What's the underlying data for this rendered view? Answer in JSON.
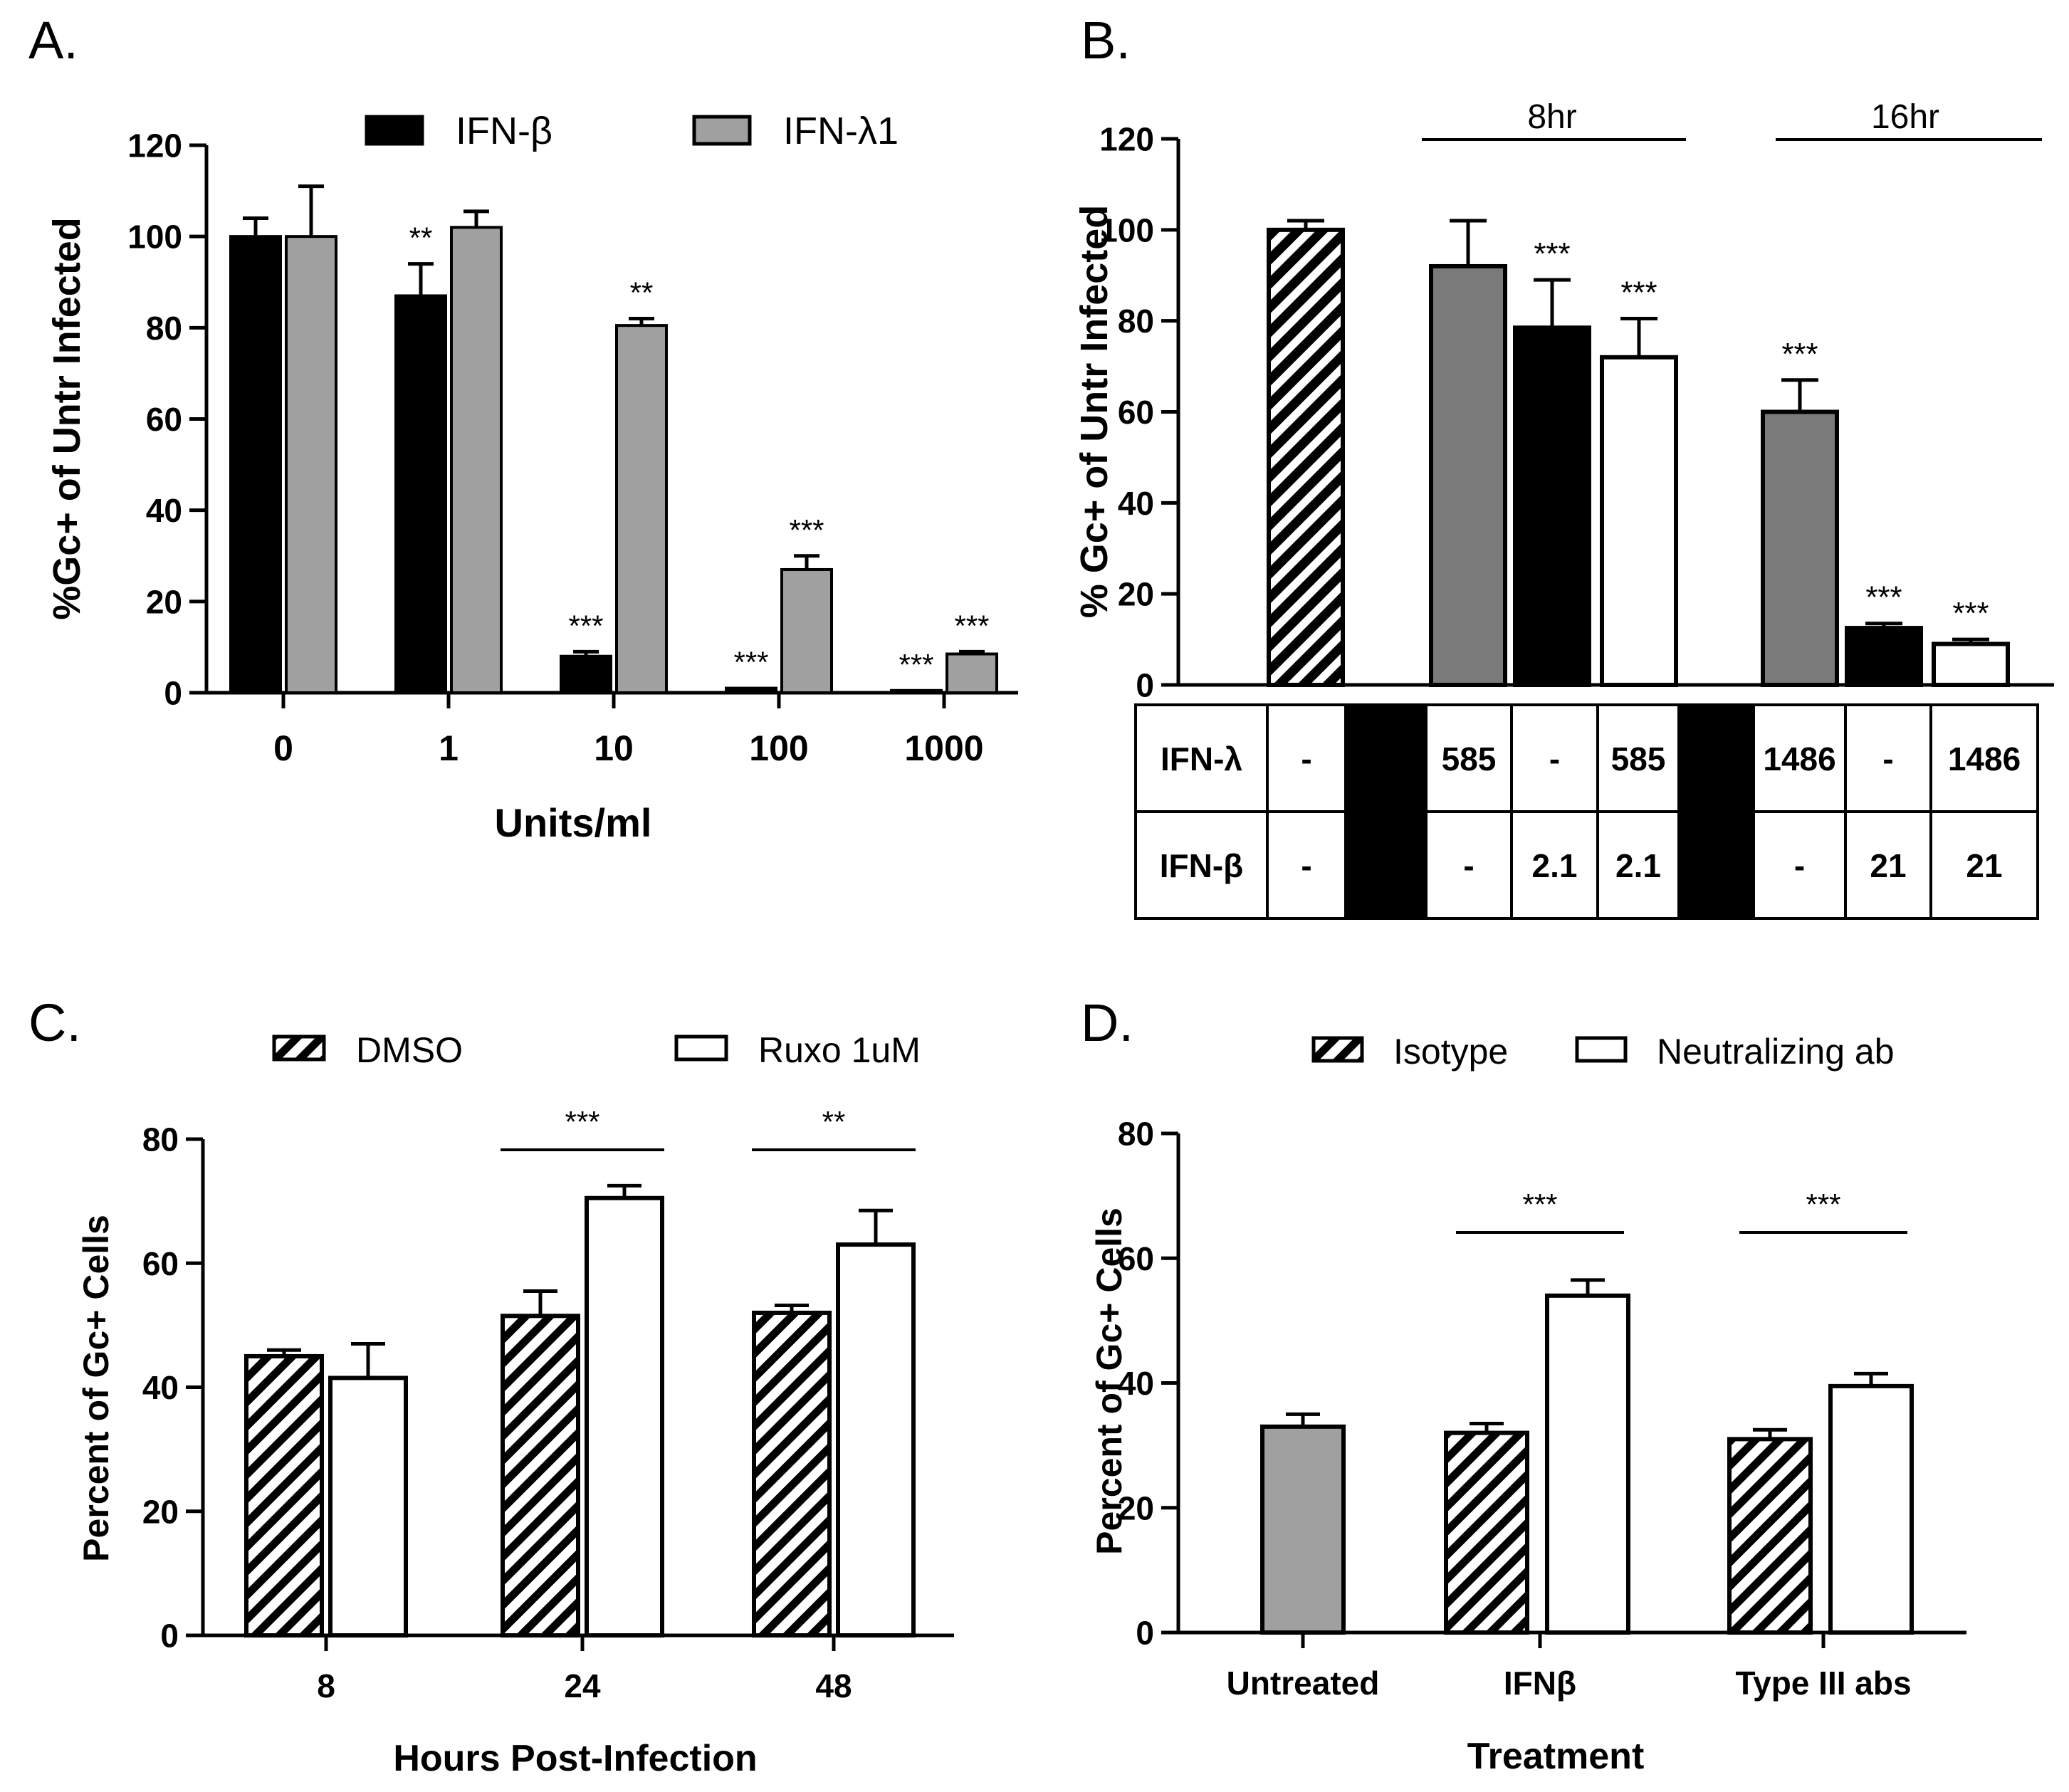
{
  "panels": {
    "A": {
      "letter": "A."
    },
    "B": {
      "letter": "B."
    },
    "C": {
      "letter": "C."
    },
    "D": {
      "letter": "D."
    }
  },
  "chart_data": [
    {
      "id": "A",
      "type": "bar",
      "ylabel": "%Gc+ of Untr Infected",
      "xlabel": "Units/ml",
      "ylim": [
        0,
        120
      ],
      "yticks": [
        0,
        20,
        40,
        60,
        80,
        100,
        120
      ],
      "categories": [
        "0",
        "1",
        "10",
        "100",
        "1000"
      ],
      "legend_position": "top",
      "series": [
        {
          "name": "IFN-β",
          "color": "#000000",
          "pattern": "solid",
          "values": [
            100,
            87,
            8,
            1,
            0.5
          ],
          "errors": [
            4,
            7,
            1,
            0,
            0
          ],
          "sig": [
            "",
            "**",
            "***",
            "***",
            "***"
          ]
        },
        {
          "name": "IFN-λ1",
          "color": "#a0a0a0",
          "pattern": "solid",
          "values": [
            100,
            102,
            80.5,
            27,
            8.5
          ],
          "errors": [
            11,
            3.5,
            1.5,
            3,
            0.5
          ],
          "sig": [
            "",
            "",
            "**",
            "***",
            "***"
          ]
        }
      ]
    },
    {
      "id": "B",
      "type": "bar",
      "ylabel": "% Gc+ of Untr Infected",
      "ylim": [
        0,
        120
      ],
      "yticks": [
        0,
        20,
        40,
        60,
        80,
        100,
        120
      ],
      "group_labels": [
        "8hr",
        "16hr"
      ],
      "bars": [
        {
          "value": 100,
          "error": 2,
          "fill": "hatch",
          "sig": ""
        },
        {
          "value": 92,
          "error": 10,
          "fill": "#7a7a7a",
          "sig": ""
        },
        {
          "value": 78.5,
          "error": 10.5,
          "fill": "#000000",
          "sig": "***"
        },
        {
          "value": 72,
          "error": 8.5,
          "fill": "#ffffff",
          "sig": "***"
        },
        {
          "value": 60,
          "error": 7,
          "fill": "#7a7a7a",
          "sig": "***"
        },
        {
          "value": 12.5,
          "error": 1,
          "fill": "#000000",
          "sig": "***"
        },
        {
          "value": 9,
          "error": 1,
          "fill": "#ffffff",
          "sig": "***"
        }
      ],
      "table": {
        "rows": [
          {
            "label": "IFN-λ",
            "cells": [
              "-",
              "",
              "585",
              "-",
              "585",
              "",
              "1486",
              "-",
              "1486"
            ]
          },
          {
            "label": "IFN-β",
            "cells": [
              "-",
              "",
              "-",
              "2.1",
              "2.1",
              "",
              "-",
              "21",
              "21"
            ]
          }
        ]
      }
    },
    {
      "id": "C",
      "type": "bar",
      "ylabel": "Percent of Gc+ Cells",
      "xlabel": "Hours Post-Infection",
      "ylim": [
        0,
        80
      ],
      "yticks": [
        0,
        20,
        40,
        60,
        80
      ],
      "categories": [
        "8",
        "24",
        "48"
      ],
      "legend_position": "top",
      "series": [
        {
          "name": "DMSO",
          "pattern": "hatch",
          "values": [
            45,
            51.5,
            52
          ],
          "errors": [
            1,
            4,
            1.2
          ]
        },
        {
          "name": "Ruxo 1uM",
          "pattern": "white",
          "values": [
            41.5,
            70.5,
            63
          ],
          "errors": [
            5.5,
            2,
            5.5
          ]
        }
      ],
      "sig_bars": [
        {
          "category": "24",
          "label": "***"
        },
        {
          "category": "48",
          "label": "**"
        }
      ]
    },
    {
      "id": "D",
      "type": "bar",
      "ylabel": "Percent of Gc+ Cells",
      "xlabel": "Treatment",
      "ylim": [
        0,
        80
      ],
      "yticks": [
        0,
        20,
        40,
        60,
        80
      ],
      "categories": [
        "Untreated",
        "IFNβ",
        "Type III abs"
      ],
      "legend_position": "top",
      "series": [
        {
          "name": "Isotype",
          "pattern": "hatch",
          "values": [
            null,
            32,
            31
          ],
          "errors": [
            null,
            1.5,
            1.5
          ]
        },
        {
          "name": "Neutralizing ab",
          "pattern": "white",
          "values": [
            null,
            54,
            39.5
          ],
          "errors": [
            null,
            2.5,
            2
          ]
        }
      ],
      "untreated": {
        "value": 33,
        "error": 2,
        "fill": "#a0a0a0"
      },
      "sig_bars": [
        {
          "category": "IFNβ",
          "label": "***"
        },
        {
          "category": "Type III abs",
          "label": "***"
        }
      ]
    }
  ]
}
